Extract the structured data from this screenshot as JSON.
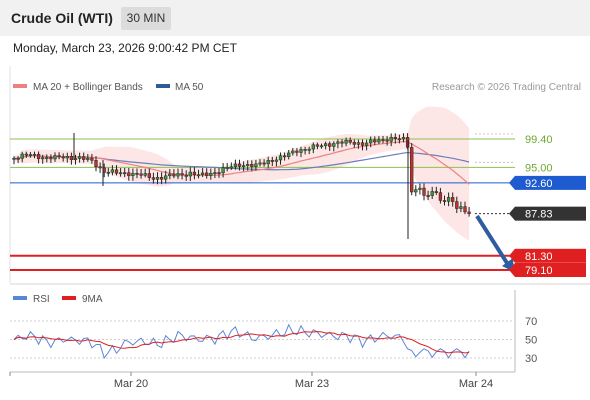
{
  "header": {
    "title": "Crude Oil (WTI)",
    "timeframe": "30 MIN",
    "datetime": "Monday, March 23, 2026 9:00:42 PM CET"
  },
  "legend": {
    "ma20_label": "MA 20 + Bollinger Bands",
    "ma50_label": "MA 50",
    "credit": "Research © 2026 Trading Central"
  },
  "chart_data": [
    {
      "type": "line",
      "panel": "price",
      "ylim": [
        79.1,
        99.4
      ],
      "x_ticks": [
        "Mar 20",
        "Mar 23",
        "Mar 24"
      ],
      "series": [
        {
          "name": "MA 20 + Bollinger Bands",
          "color": "#f08080"
        },
        {
          "name": "MA 50",
          "color": "#2d5c9e"
        }
      ],
      "levels": [
        {
          "label": "99.40",
          "value": 99.4,
          "kind": "resistance",
          "color": "#8cc152"
        },
        {
          "label": "95.00",
          "value": 95.0,
          "kind": "resistance",
          "color": "#8cc152"
        },
        {
          "label": "92.60",
          "value": 92.6,
          "kind": "pivot",
          "color": "#1f5bd0"
        },
        {
          "label": "87.83",
          "value": 87.83,
          "kind": "last",
          "color": "#333333"
        },
        {
          "label": "81.30",
          "value": 81.3,
          "kind": "support",
          "color": "#e02020"
        },
        {
          "label": "79.10",
          "value": 79.1,
          "kind": "support",
          "color": "#e02020"
        }
      ],
      "trend_arrow": "down"
    },
    {
      "type": "line",
      "panel": "rsi",
      "ylim": [
        30,
        70
      ],
      "y_ticks": [
        "70",
        "50",
        "30"
      ],
      "series": [
        {
          "name": "RSI",
          "color": "#5b86d6"
        },
        {
          "name": "9MA",
          "color": "#e02020"
        }
      ]
    }
  ]
}
